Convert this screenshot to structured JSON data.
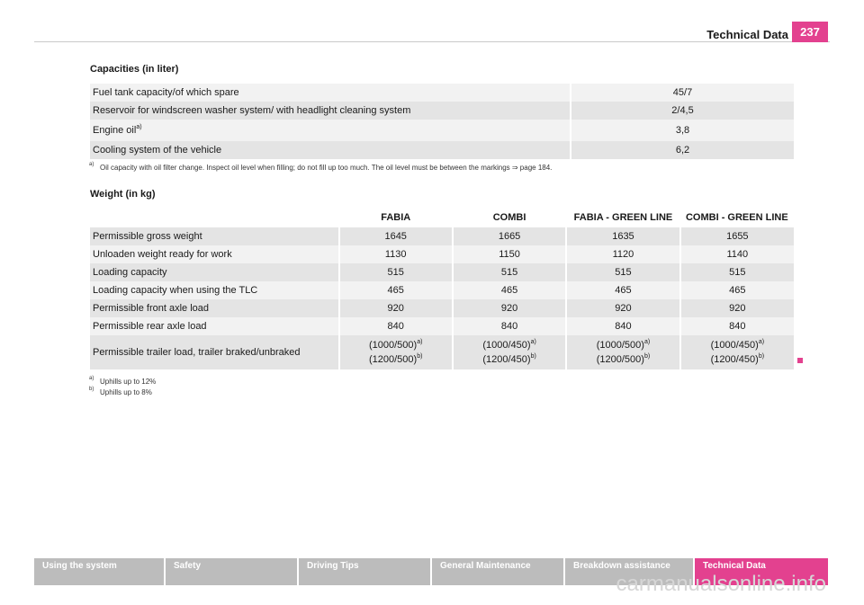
{
  "header": {
    "title": "Technical Data",
    "page_number": "237"
  },
  "capacities": {
    "title": "Capacities (in liter)",
    "rows": [
      {
        "label": "Fuel tank capacity/of which spare",
        "value": "45/7"
      },
      {
        "label": "Reservoir for windscreen washer system/ with headlight cleaning system",
        "value": "2/4,5"
      },
      {
        "label": "Engine oil",
        "sup": "a)",
        "value": "3,8"
      },
      {
        "label": "Cooling system of the vehicle",
        "value": "6,2"
      }
    ],
    "footnote": {
      "mark": "a)",
      "text": "Oil capacity with oil filter change. Inspect oil level when filling; do not fill up too much. The oil level must be between the markings ⇒ page 184."
    }
  },
  "weight": {
    "title": "Weight (in kg)",
    "columns": [
      "FABIA",
      "COMBI",
      "FABIA - GREEN LINE",
      "COMBI - GREEN LINE"
    ],
    "rows": [
      {
        "label": "Permissible gross weight",
        "values": [
          "1645",
          "1665",
          "1635",
          "1655"
        ]
      },
      {
        "label": "Unloaden weight ready for work",
        "values": [
          "1130",
          "1150",
          "1120",
          "1140"
        ]
      },
      {
        "label": "Loading capacity",
        "values": [
          "515",
          "515",
          "515",
          "515"
        ]
      },
      {
        "label": "Loading capacity when using the TLC",
        "values": [
          "465",
          "465",
          "465",
          "465"
        ]
      },
      {
        "label": "Permissible front axle load",
        "values": [
          "920",
          "920",
          "920",
          "920"
        ]
      },
      {
        "label": "Permissible rear axle load",
        "values": [
          "840",
          "840",
          "840",
          "840"
        ]
      }
    ],
    "trailer_row": {
      "label": "Permissible trailer load, trailer braked/unbraked",
      "cells": [
        {
          "line1": "(1000/500)",
          "sup1": "a)",
          "line2": "(1200/500)",
          "sup2": "b)"
        },
        {
          "line1": "(1000/450)",
          "sup1": "a)",
          "line2": "(1200/450)",
          "sup2": "b)"
        },
        {
          "line1": "(1000/500)",
          "sup1": "a)",
          "line2": "(1200/500)",
          "sup2": "b)"
        },
        {
          "line1": "(1000/450)",
          "sup1": "a)",
          "line2": "(1200/450)",
          "sup2": "b)"
        }
      ]
    },
    "footnotes": [
      {
        "mark": "a)",
        "text": "Uphills up to 12%"
      },
      {
        "mark": "b)",
        "text": "Uphills up to 8%"
      }
    ]
  },
  "nav": {
    "items": [
      "Using the system",
      "Safety",
      "Driving Tips",
      "General Maintenance",
      "Breakdown assistance",
      "Technical Data"
    ],
    "active_color": "#e3418f"
  },
  "watermark": "carmanualsonline.info"
}
